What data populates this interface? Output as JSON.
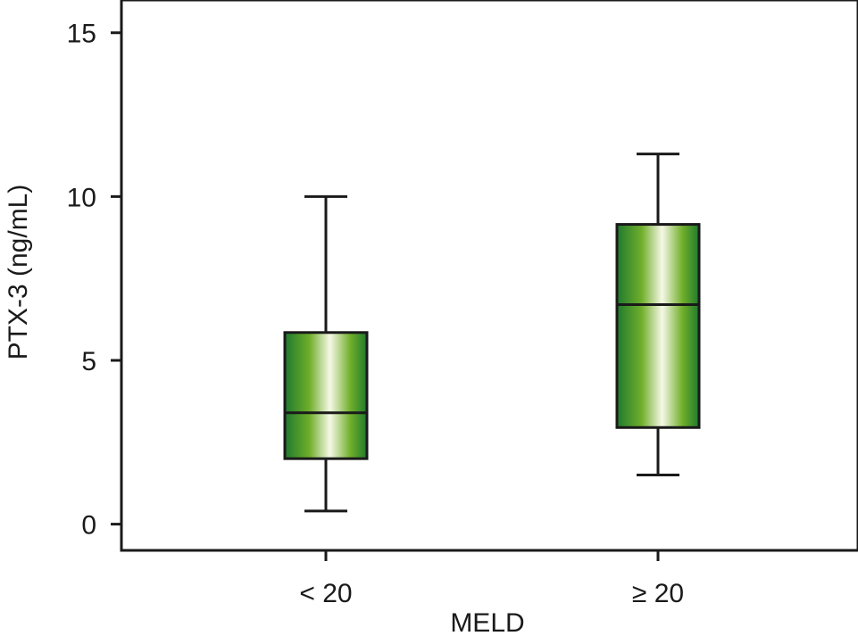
{
  "chart_data": {
    "type": "boxplot",
    "title": "",
    "xlabel": "MELD",
    "ylabel": "PTX-3 (ng/mL)",
    "ylim": [
      -0.8,
      16
    ],
    "yticks": [
      0,
      5,
      10,
      15
    ],
    "grid": false,
    "categories": [
      "< 20",
      "≥ 20"
    ],
    "boxes": [
      {
        "category": "< 20",
        "whisker_low": 0.4,
        "q1": 2.0,
        "median": 3.4,
        "q3": 5.85,
        "whisker_high": 10.0
      },
      {
        "category": "≥ 20",
        "whisker_low": 1.5,
        "q1": 2.95,
        "median": 6.7,
        "q3": 9.15,
        "whisker_high": 11.3
      }
    ],
    "colors": {
      "box_dark": "#1f7a2e",
      "box_mid": "#6fae2a",
      "box_light": "#f6f8e6",
      "line": "#1a1a1a"
    }
  }
}
